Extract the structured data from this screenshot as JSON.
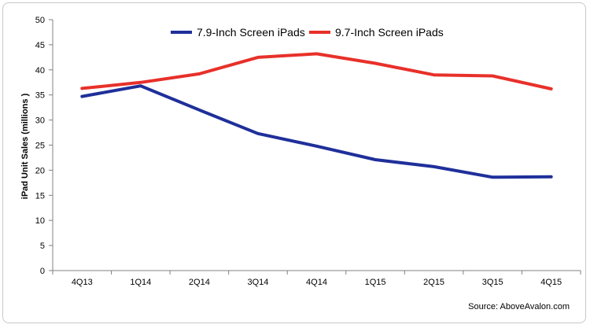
{
  "chart_data": {
    "type": "line",
    "categories": [
      "4Q13",
      "1Q14",
      "2Q14",
      "3Q14",
      "4Q14",
      "1Q15",
      "2Q15",
      "3Q15",
      "4Q15"
    ],
    "series": [
      {
        "name": "7.9-Inch Screen iPads",
        "color": "#1f2f9a",
        "values": [
          34.7,
          36.8,
          32.0,
          27.3,
          24.8,
          22.1,
          20.7,
          18.6,
          18.7
        ]
      },
      {
        "name": "9.7-Inch Screen iPads",
        "color": "#e8302a",
        "values": [
          36.3,
          37.5,
          39.2,
          42.5,
          43.2,
          41.3,
          39.0,
          38.8,
          36.2
        ]
      }
    ],
    "ylabel": "iPad Unit Sales (millions )",
    "ylim": [
      0,
      50
    ],
    "yticks": [
      "0",
      "5",
      "10",
      "15",
      "20",
      "25",
      "30",
      "35",
      "40",
      "45",
      "50"
    ],
    "grid": false,
    "legend_position": "top-center",
    "source": "Source: AboveAvalon.com"
  }
}
